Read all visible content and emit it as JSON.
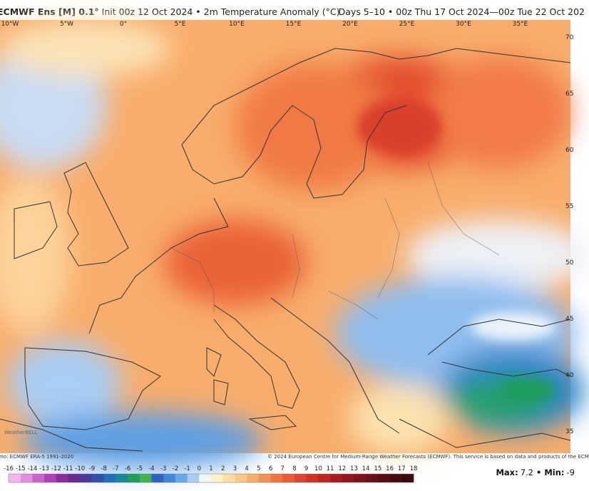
{
  "header": {
    "title": "ECMWF Ens [M] 0.1°",
    "subtitle": "Init 00z 12 Oct 2024 • 2m Temperature Anomaly (°C)",
    "valid": "Days 5–10 • 00z Thu 17 Oct 2024—00z Tue 22 Oct 202"
  },
  "map": {
    "longitudes": [
      "10°W",
      "5°W",
      "0°",
      "5°E",
      "10°E",
      "15°E",
      "20°E",
      "25°E",
      "30°E",
      "35°E"
    ],
    "latitudes": [
      "70",
      "65",
      "60",
      "55",
      "50",
      "45",
      "40",
      "35"
    ],
    "watermark": "WeatherBELL"
  },
  "footer": {
    "climo": "mo: ECMWF ERA-5 1991-2020",
    "credit": "© 2024 European Centre for Medium-Range Weather Forecasts (ECMWF). This service is based on data and products of the ECM"
  },
  "colorbar": {
    "ticks": [
      -16,
      -15,
      -14,
      -13,
      -12,
      -11,
      -10,
      -9,
      -8,
      -7,
      -6,
      -5,
      -4,
      -3,
      -2,
      -1,
      0,
      1,
      2,
      3,
      4,
      5,
      6,
      7,
      8,
      9,
      10,
      11,
      12,
      13,
      14,
      15,
      16,
      17,
      18
    ],
    "colors": [
      "#f7b6f0",
      "#e58de0",
      "#cf62cf",
      "#b33fb8",
      "#8e2ba0",
      "#6a2a8f",
      "#4b3a9e",
      "#2f4fb0",
      "#1f6fc0",
      "#148a9a",
      "#1e9d5c",
      "#3cb44a",
      "#2d62c8",
      "#3f86de",
      "#6aa8ec",
      "#a9cdf3",
      "#f2f6fb",
      "#fdf3c4",
      "#fde0a0",
      "#fcc884",
      "#f9ae68",
      "#f69152",
      "#f27442",
      "#ec5b36",
      "#e1442d",
      "#d23228",
      "#bf2522",
      "#a91c1e",
      "#94161c",
      "#7f121a",
      "#6c0f17",
      "#5a0d14",
      "#4b0a10",
      "#3d080d"
    ]
  },
  "stats": {
    "separator": "•",
    "items": [
      {
        "label": "Max:",
        "value": 7.2
      },
      {
        "label": "Min:",
        "value": -9
      }
    ]
  }
}
